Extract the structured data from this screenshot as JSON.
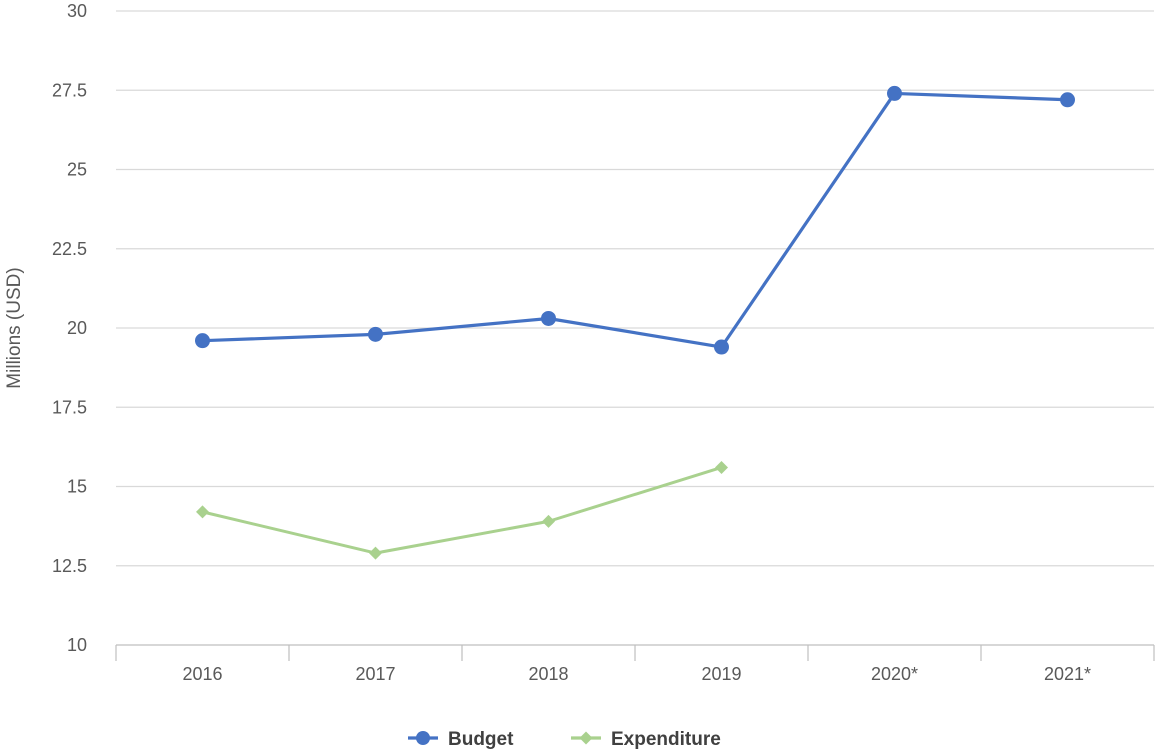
{
  "chart_data": {
    "type": "line",
    "categories": [
      "2016",
      "2017",
      "2018",
      "2019",
      "2020*",
      "2021*"
    ],
    "series": [
      {
        "name": "Budget",
        "color": "#4472C4",
        "marker": "circle",
        "values": [
          19.6,
          19.8,
          20.3,
          19.4,
          27.4,
          27.2
        ]
      },
      {
        "name": "Expenditure",
        "color": "#A9D18E",
        "marker": "diamond",
        "values": [
          14.2,
          12.9,
          13.9,
          15.6,
          null,
          null
        ]
      }
    ],
    "title": "",
    "xlabel": "",
    "ylabel": "Millions (USD)",
    "ylim": [
      10,
      30
    ],
    "yticks": [
      "10",
      "12.5",
      "15",
      "17.5",
      "20",
      "22.5",
      "25",
      "27.5",
      "30"
    ],
    "grid": true,
    "legend_position": "bottom"
  },
  "colors": {
    "grid": "#D9D9D9",
    "axis": "#BFBFBF",
    "text": "#595959"
  }
}
